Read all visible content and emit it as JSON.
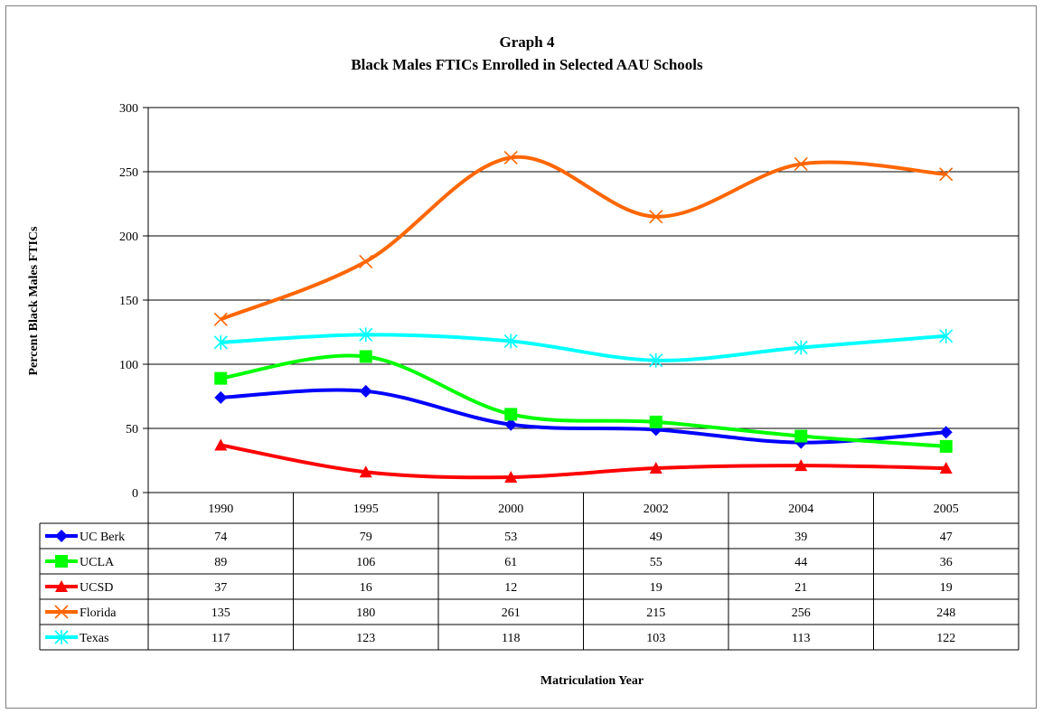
{
  "chart_data": {
    "type": "line",
    "title": "Graph 4",
    "subtitle": "Black Males FTICs Enrolled in Selected AAU Schools",
    "ylabel": "Percent Black Males FTICs",
    "xlabel": "Matriculation Year",
    "ylim": [
      0,
      300
    ],
    "yticks": [
      0,
      50,
      100,
      150,
      200,
      250,
      300
    ],
    "grid": true,
    "legend": "data-table",
    "categories": [
      "1990",
      "1995",
      "2000",
      "2002",
      "2004",
      "2005"
    ],
    "series": [
      {
        "name": "UC Berk",
        "values": [
          74,
          79,
          53,
          49,
          39,
          47
        ],
        "color": "#0000ff",
        "marker": "diamond"
      },
      {
        "name": "UCLA",
        "values": [
          89,
          106,
          61,
          55,
          44,
          36
        ],
        "color": "#00ff00",
        "marker": "square"
      },
      {
        "name": "UCSD",
        "values": [
          37,
          16,
          12,
          19,
          21,
          19
        ],
        "color": "#ff0000",
        "marker": "triangle"
      },
      {
        "name": "Florida",
        "values": [
          135,
          180,
          261,
          215,
          256,
          248
        ],
        "color": "#ff6600",
        "marker": "x"
      },
      {
        "name": "Texas",
        "values": [
          117,
          123,
          118,
          103,
          113,
          122
        ],
        "color": "#00ffff",
        "marker": "star"
      }
    ]
  }
}
